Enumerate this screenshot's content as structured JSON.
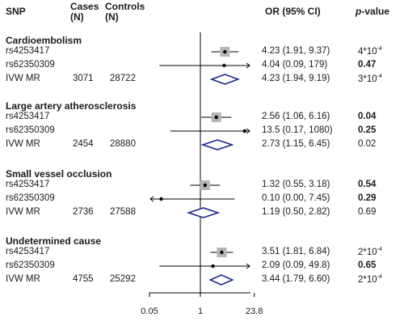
{
  "header": {
    "snp": "SNP",
    "cases": "Cases",
    "cases_unit": "(N)",
    "controls": "Controls",
    "controls_unit": "(N)",
    "or": "OR (95% CI)",
    "pvalue_italic": "p",
    "pvalue_rest": "-value"
  },
  "chart_data": {
    "type": "forest",
    "x_scale": "log",
    "xlim": [
      0.05,
      23.8
    ],
    "x_ticks": [
      "0.05",
      "1",
      "23.8"
    ],
    "reference_line": 1,
    "groups": [
      {
        "name": "Cardioembolism",
        "rows": [
          {
            "snp": "rs4253417",
            "cases": "",
            "controls": "",
            "or": 4.23,
            "lo": 1.91,
            "hi": 9.37,
            "or_text": "4.23 (1.91, 9.37)",
            "p_base": "4*10",
            "p_exp": "-4",
            "p_bold": false,
            "kind": "snp",
            "big": true
          },
          {
            "snp": "rs62350309",
            "cases": "",
            "controls": "",
            "or": 4.04,
            "lo": 0.09,
            "hi": 179,
            "or_text": "4.04 (0.09, 179)",
            "p_base": "0.47",
            "p_exp": "",
            "p_bold": true,
            "kind": "snp",
            "big": false
          },
          {
            "snp": "IVW MR",
            "cases": "3071",
            "controls": "28722",
            "or": 4.23,
            "lo": 1.94,
            "hi": 9.19,
            "or_text": "4.23 (1.94, 9.19)",
            "p_base": "3*10",
            "p_exp": "-4",
            "p_bold": false,
            "kind": "ivw",
            "big": false
          }
        ]
      },
      {
        "name": "Large artery atherosclerosis",
        "rows": [
          {
            "snp": "rs4253417",
            "cases": "",
            "controls": "",
            "or": 2.56,
            "lo": 1.06,
            "hi": 6.16,
            "or_text": "2.56 (1.06, 6.16)",
            "p_base": "0.04",
            "p_exp": "",
            "p_bold": true,
            "kind": "snp",
            "big": true
          },
          {
            "snp": "rs62350309",
            "cases": "",
            "controls": "",
            "or": 13.5,
            "lo": 0.17,
            "hi": 1080,
            "or_text": "13.5 (0.17, 1080)",
            "p_base": "0.25",
            "p_exp": "",
            "p_bold": true,
            "kind": "snp",
            "big": false
          },
          {
            "snp": "IVW MR",
            "cases": "2454",
            "controls": "28880",
            "or": 2.73,
            "lo": 1.15,
            "hi": 6.45,
            "or_text": "2.73 (1.15, 6.45)",
            "p_base": "0.02",
            "p_exp": "",
            "p_bold": false,
            "kind": "ivw",
            "big": false
          }
        ]
      },
      {
        "name": "Small vessel occlusion",
        "rows": [
          {
            "snp": "rs4253417",
            "cases": "",
            "controls": "",
            "or": 1.32,
            "lo": 0.55,
            "hi": 3.18,
            "or_text": "1.32 (0.55, 3.18)",
            "p_base": "0.54",
            "p_exp": "",
            "p_bold": true,
            "kind": "snp",
            "big": true
          },
          {
            "snp": "rs62350309",
            "cases": "",
            "controls": "",
            "or": 0.1,
            "lo": 0.0,
            "hi": 7.45,
            "or_text": "0.10 (0.00, 7.45)",
            "p_base": "0.29",
            "p_exp": "",
            "p_bold": true,
            "kind": "snp",
            "big": false
          },
          {
            "snp": "IVW MR",
            "cases": "2736",
            "controls": "27588",
            "or": 1.19,
            "lo": 0.5,
            "hi": 2.82,
            "or_text": "1.19 (0.50, 2.82)",
            "p_base": "0.69",
            "p_exp": "",
            "p_bold": false,
            "kind": "ivw",
            "big": false
          }
        ]
      },
      {
        "name": "Undetermined cause",
        "rows": [
          {
            "snp": "rs4253417",
            "cases": "",
            "controls": "",
            "or": 3.51,
            "lo": 1.81,
            "hi": 6.84,
            "or_text": "3.51 (1.81, 6.84)",
            "p_base": "2*10",
            "p_exp": "-4",
            "p_bold": false,
            "kind": "snp",
            "big": true
          },
          {
            "snp": "rs62350309",
            "cases": "",
            "controls": "",
            "or": 2.09,
            "lo": 0.09,
            "hi": 49.8,
            "or_text": "2.09 (0.09, 49.8)",
            "p_base": "0.65",
            "p_exp": "",
            "p_bold": true,
            "kind": "snp",
            "big": false
          },
          {
            "snp": "IVW MR",
            "cases": "4755",
            "controls": "25292",
            "or": 3.44,
            "lo": 1.79,
            "hi": 6.6,
            "or_text": "3.44 (1.79, 6.60)",
            "p_base": "2*10",
            "p_exp": "-4",
            "p_bold": false,
            "kind": "ivw",
            "big": false
          }
        ]
      }
    ]
  },
  "colors": {
    "text": "#1a1a1a",
    "diamond": "#1f2a8a",
    "square": "#b5b5b5",
    "line": "#000000"
  }
}
